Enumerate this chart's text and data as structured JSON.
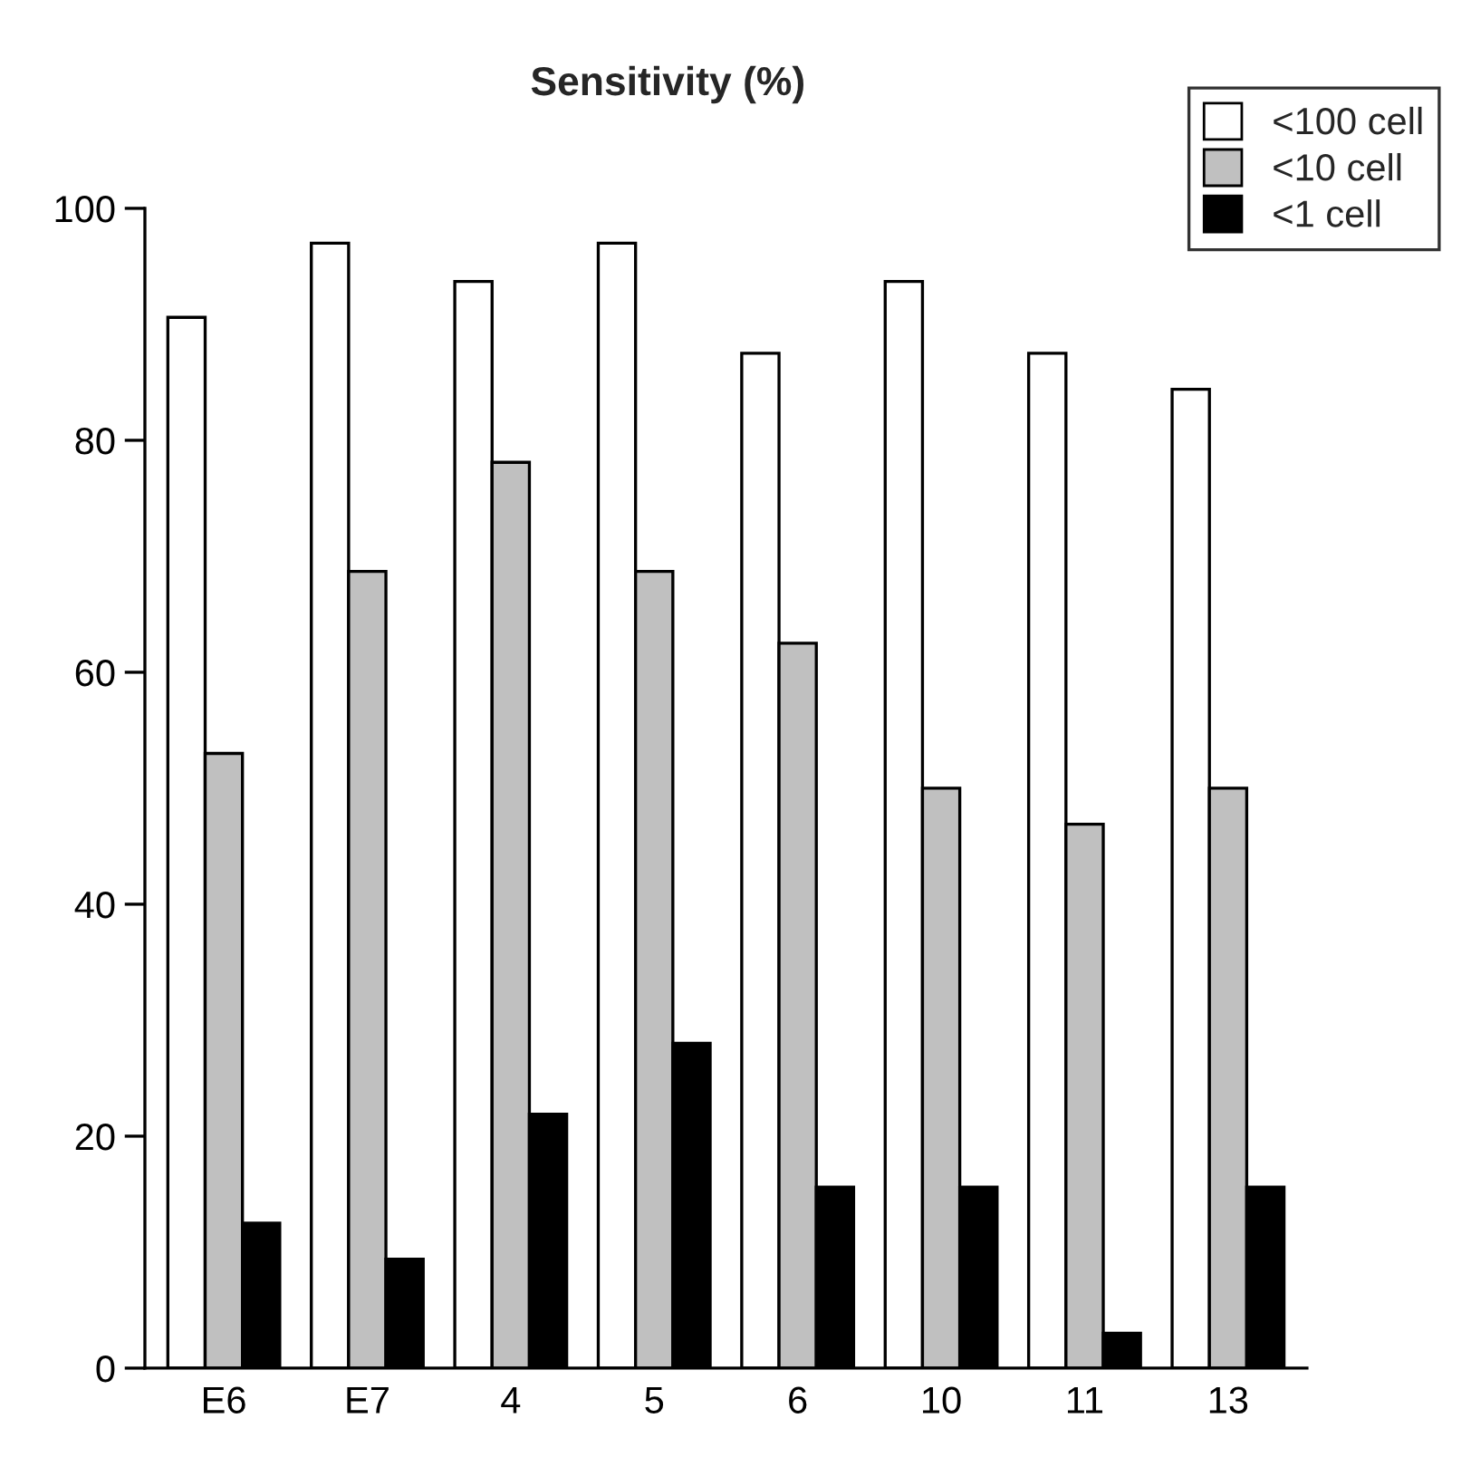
{
  "chart_data": {
    "type": "bar",
    "title": "Sensitivity (%)",
    "categories": [
      "E6",
      "E7",
      "4",
      "5",
      "6",
      "10",
      "11",
      "13"
    ],
    "series": [
      {
        "name": "<100 cell",
        "color": "#ffffff",
        "values": [
          90.6,
          97.0,
          93.7,
          97.0,
          87.5,
          93.7,
          87.5,
          84.4
        ]
      },
      {
        "name": "<10 cell",
        "color": "#c0c0c0",
        "values": [
          53.0,
          68.7,
          78.1,
          68.7,
          62.5,
          50.0,
          46.9,
          50.0
        ]
      },
      {
        "name": "<1 cell",
        "color": "#000000",
        "values": [
          12.5,
          9.4,
          21.9,
          28.0,
          15.6,
          15.6,
          3.0,
          15.6
        ]
      }
    ],
    "ylim": [
      0,
      100
    ],
    "yticks": [
      0,
      20,
      40,
      60,
      80,
      100
    ],
    "grid": false,
    "legend": "top right"
  }
}
